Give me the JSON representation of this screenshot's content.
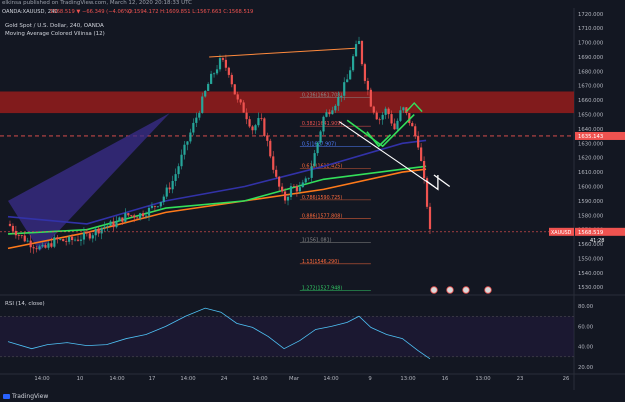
{
  "header": {
    "published_line": "elkinsa published on TradingView.com, March 12, 2020 20:18:33 UTC",
    "symbol_line_1": "OANDA:XAUUSD, 240",
    "symbol_line_2": "1568.519 ▼ −66.349 (−4.06%)",
    "symbol_line_3": "O:1594.172 H:1609.851 L:1567.663 C:1568.519",
    "study_title": "Gold Spot / U.S. Dollar, 240, OANDA",
    "indicator_label": "Moving Average Colored Vilinsa (12)"
  },
  "rsi_label": "RSI (14, close)",
  "footer": {
    "brand": "TradingView"
  },
  "chart_data": [
    {
      "type": "candlestick",
      "title": "Gold Spot / U.S. Dollar, 240, OANDA",
      "y_axis_ticks": [
        1530,
        1540,
        1550,
        1560,
        1570,
        1580,
        1590,
        1600,
        1610,
        1620,
        1630,
        1640,
        1650,
        1660,
        1670,
        1680,
        1690,
        1700,
        1710,
        1720
      ],
      "x_axis_ticks": [
        "14:00",
        "10",
        "14:00",
        "17",
        "14:00",
        "24",
        "14:00",
        "Mar",
        "14:00",
        "9",
        "13:00",
        "16",
        "13:00",
        "23",
        "26"
      ],
      "ylim": [
        1526,
        1724
      ],
      "last_price": "1568.519",
      "last_price_change": "41:28",
      "crosshair_price": "1635.143",
      "symbol_badge": "XAUUSD",
      "price_path": [
        [
          0,
          1574
        ],
        [
          3,
          1566
        ],
        [
          6,
          1560
        ],
        [
          9,
          1556
        ],
        [
          12,
          1563
        ],
        [
          15,
          1562
        ],
        [
          18,
          1564
        ],
        [
          21,
          1567
        ],
        [
          24,
          1572
        ],
        [
          27,
          1574
        ],
        [
          30,
          1580
        ],
        [
          33,
          1580
        ],
        [
          36,
          1584
        ],
        [
          39,
          1591
        ],
        [
          42,
          1605
        ],
        [
          45,
          1628
        ],
        [
          48,
          1650
        ],
        [
          51,
          1673
        ],
        [
          54,
          1688
        ],
        [
          56,
          1680
        ],
        [
          58,
          1660
        ],
        [
          60,
          1652
        ],
        [
          62,
          1640
        ],
        [
          64,
          1647
        ],
        [
          66,
          1628
        ],
        [
          68,
          1605
        ],
        [
          70,
          1590
        ],
        [
          72,
          1600
        ],
        [
          74,
          1598
        ],
        [
          76,
          1605
        ],
        [
          78,
          1625
        ],
        [
          80,
          1648
        ],
        [
          82,
          1655
        ],
        [
          84,
          1662
        ],
        [
          86,
          1674
        ],
        [
          88,
          1695
        ],
        [
          89,
          1700
        ],
        [
          90,
          1682
        ],
        [
          92,
          1658
        ],
        [
          94,
          1646
        ],
        [
          96,
          1654
        ],
        [
          98,
          1640
        ],
        [
          100,
          1655
        ],
        [
          102,
          1644
        ],
        [
          104,
          1630
        ],
        [
          106,
          1594
        ],
        [
          107,
          1568
        ]
      ],
      "fibonacci_levels": [
        {
          "ratio": "0.236",
          "price": "1661.708",
          "value": 1661.7
        },
        {
          "ratio": "0.382",
          "price": "1641.909",
          "value": 1641.9
        },
        {
          "ratio": "0.5",
          "price": "1627.907",
          "value": 1627.9
        },
        {
          "ratio": "0.618",
          "price": "1612.425",
          "value": 1612.4
        },
        {
          "ratio": "0.786",
          "price": "1590.725",
          "value": 1590.7
        },
        {
          "ratio": "0.886",
          "price": "1577.808",
          "value": 1577.8
        },
        {
          "ratio": "1",
          "price": "1561.081",
          "value": 1561.1
        },
        {
          "ratio": "1.13",
          "price": "1546.290",
          "value": 1546.3
        },
        {
          "ratio": "1.272",
          "price": "1527.948",
          "value": 1527.9
        }
      ],
      "resistance_zone": [
        1651,
        1666
      ],
      "support_line": 1635.1,
      "ma_series": [
        {
          "color": "#ff7a1a",
          "values": [
            [
              0,
              1557
            ],
            [
              20,
              1568
            ],
            [
              40,
              1582
            ],
            [
              60,
              1590
            ],
            [
              80,
              1598
            ],
            [
              100,
              1610
            ],
            [
              106,
              1612
            ]
          ]
        },
        {
          "color": "#33e05a",
          "values": [
            [
              0,
              1567
            ],
            [
              20,
              1570
            ],
            [
              40,
              1585
            ],
            [
              60,
              1590
            ],
            [
              80,
              1605
            ],
            [
              100,
              1612
            ],
            [
              106,
              1614
            ]
          ]
        },
        {
          "color": "#3232a8",
          "values": [
            [
              0,
              1579
            ],
            [
              20,
              1574
            ],
            [
              40,
              1590
            ],
            [
              60,
              1600
            ],
            [
              80,
              1614
            ],
            [
              100,
              1630
            ],
            [
              106,
              1632
            ]
          ]
        }
      ],
      "x_range": [
        0,
        150
      ]
    },
    {
      "type": "line",
      "title": "RSI (14, close)",
      "y_axis_ticks": [
        20,
        40,
        60,
        80
      ],
      "ylim": [
        15,
        90
      ],
      "values": [
        [
          0,
          45
        ],
        [
          6,
          38
        ],
        [
          10,
          42
        ],
        [
          15,
          44
        ],
        [
          20,
          41
        ],
        [
          25,
          42
        ],
        [
          30,
          48
        ],
        [
          35,
          52
        ],
        [
          40,
          60
        ],
        [
          45,
          70
        ],
        [
          50,
          78
        ],
        [
          54,
          74
        ],
        [
          58,
          63
        ],
        [
          62,
          59
        ],
        [
          66,
          50
        ],
        [
          70,
          38
        ],
        [
          74,
          46
        ],
        [
          78,
          57
        ],
        [
          82,
          60
        ],
        [
          86,
          64
        ],
        [
          89,
          70
        ],
        [
          92,
          59
        ],
        [
          96,
          52
        ],
        [
          100,
          48
        ],
        [
          104,
          36
        ],
        [
          107,
          28
        ]
      ]
    }
  ],
  "colors": {
    "background": "#131722",
    "up_candle": "#26a69a",
    "down_candle": "#ef5350",
    "zone_red": "#8e1c1c",
    "purple_wedge": "#3b2d8c",
    "rsi_line": "#4fc3f7"
  }
}
